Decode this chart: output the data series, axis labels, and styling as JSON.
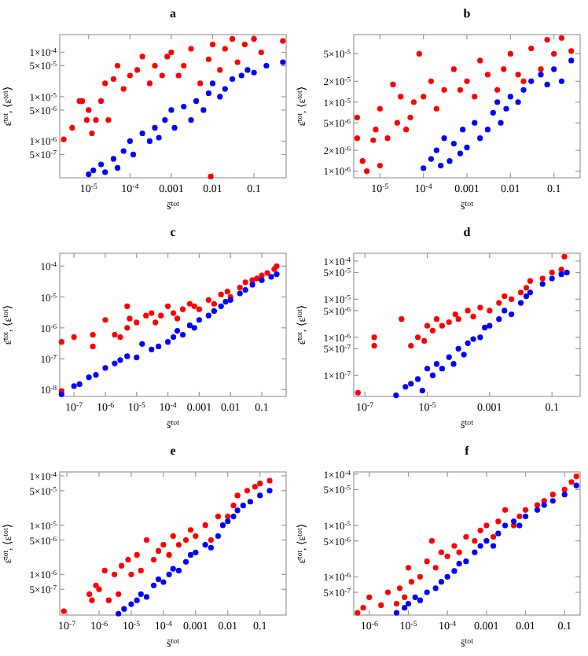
{
  "chart_data": [
    {
      "type": "scatter",
      "title": "a",
      "xlabel": "s̄$^{tot}$",
      "ylabel": "ε̄$^{tot}$, ⟨ε$^{tot}$⟩",
      "log": "xy",
      "marker": "circle",
      "xlim": [
        2e-06,
        0.6
      ],
      "ylim": [
        1.5e-07,
        0.00025
      ],
      "xticks": [
        {
          "value": 1e-05,
          "label": "10$^{-5}$"
        },
        {
          "value": 0.0001,
          "label": "10$^{-4}$"
        },
        0.001,
        0.01,
        0.1
      ],
      "yticks": [
        {
          "value": 5e-07,
          "label": "5×10$^{-7}$"
        },
        {
          "value": 1e-06,
          "label": "1×10$^{-6}$"
        },
        {
          "value": 5e-06,
          "label": "5×10$^{-6}$"
        },
        {
          "value": 1e-05,
          "label": "1×10$^{-5}$"
        },
        {
          "value": 5e-05,
          "label": "5×10$^{-5}$"
        },
        {
          "value": 0.0001,
          "label": "1×10$^{-4}$"
        }
      ],
      "series": [
        {
          "color": "#ff0000",
          "x": [
            2.5e-06,
            4e-06,
            6e-06,
            7e-06,
            9e-06,
            1e-05,
            1.2e-05,
            1.5e-05,
            2e-05,
            2.5e-05,
            3e-05,
            4e-05,
            5e-05,
            7e-05,
            0.0001,
            0.00015,
            0.0002,
            0.0003,
            0.0004,
            0.0006,
            0.0008,
            0.001,
            0.0015,
            0.002,
            0.003,
            0.005,
            0.008,
            0.009,
            0.01,
            0.015,
            0.02,
            0.03,
            0.04,
            0.06,
            0.1,
            0.15,
            0.5
          ],
          "values": [
            1.1e-06,
            2e-06,
            8e-06,
            8e-06,
            3e-06,
            5e-06,
            1.5e-06,
            3e-06,
            8e-06,
            2e-05,
            3e-06,
            2.5e-05,
            5e-05,
            1.5e-05,
            3e-05,
            4e-05,
            8e-05,
            2e-05,
            5e-05,
            3e-05,
            8e-05,
            0.0001,
            3e-05,
            5e-05,
            0.00012,
            2e-05,
            7e-05,
            1.6e-07,
            0.00015,
            4e-05,
            0.00012,
            0.0002,
            6e-05,
            0.00015,
            0.0002,
            0.0001,
            0.00018
          ]
        },
        {
          "color": "#0000ff",
          "x": [
            1e-05,
            1.3e-05,
            2e-05,
            2.5e-05,
            4e-05,
            5e-05,
            7e-05,
            0.0001,
            0.00012,
            0.0002,
            0.0003,
            0.0004,
            0.0005,
            0.0007,
            0.001,
            0.0012,
            0.002,
            0.003,
            0.004,
            0.006,
            0.008,
            0.01,
            0.015,
            0.02,
            0.03,
            0.05,
            0.07,
            0.1,
            0.2,
            0.5
          ],
          "values": [
            1.8e-07,
            2.2e-07,
            3e-07,
            2e-07,
            4e-07,
            2.5e-07,
            6e-07,
            1e-06,
            5e-07,
            1.5e-06,
            1e-06,
            2e-06,
            1.2e-06,
            3e-06,
            5e-06,
            2e-06,
            6e-06,
            3e-06,
            8e-06,
            5e-06,
            1.2e-05,
            2e-05,
            1e-05,
            1.5e-05,
            2.5e-05,
            3e-05,
            4e-05,
            3.5e-05,
            5e-05,
            6e-05
          ]
        }
      ]
    },
    {
      "type": "scatter",
      "title": "b",
      "xlabel": "s̄$^{tot}$",
      "ylabel": "ε̄$^{tot}$, ⟨ε$^{tot}$⟩",
      "log": "xy",
      "marker": "circle",
      "xlim": [
        2.5e-06,
        0.4
      ],
      "ylim": [
        8e-07,
        9.5e-05
      ],
      "xticks": [
        {
          "value": 1e-05,
          "label": "10$^{-5}$"
        },
        {
          "value": 0.0001,
          "label": "10$^{-4}$"
        },
        0.001,
        0.01,
        0.1
      ],
      "yticks": [
        {
          "value": 1e-06,
          "label": "1×10$^{-6}$"
        },
        {
          "value": 2e-06,
          "label": "2×10$^{-6}$"
        },
        {
          "value": 5e-06,
          "label": "5×10$^{-6}$"
        },
        {
          "value": 1e-05,
          "label": "1×10$^{-5}$"
        },
        {
          "value": 2e-05,
          "label": "2×10$^{-5}$"
        },
        {
          "value": 5e-05,
          "label": "5×10$^{-5}$"
        }
      ],
      "series": [
        {
          "color": "#ff0000",
          "x": [
            3e-06,
            3e-06,
            4e-06,
            5e-06,
            7e-06,
            8e-06,
            1e-05,
            1e-05,
            1.5e-05,
            2e-05,
            2.5e-05,
            3e-05,
            4e-05,
            5e-05,
            6e-05,
            8e-05,
            0.0001,
            0.00015,
            0.0002,
            0.0003,
            0.0005,
            0.0007,
            0.001,
            0.0015,
            0.002,
            0.003,
            0.005,
            0.007,
            0.01,
            0.015,
            0.02,
            0.03,
            0.05,
            0.07,
            0.1,
            0.15,
            0.25
          ],
          "values": [
            6e-06,
            3e-06,
            1.4e-06,
            1e-06,
            2.8e-06,
            4e-06,
            8e-06,
            1.2e-06,
            3e-06,
            1.8e-05,
            5e-06,
            1.2e-05,
            4e-06,
            6e-06,
            1e-05,
            5e-05,
            1.2e-05,
            2e-05,
            8e-06,
            1.5e-05,
            3e-05,
            1.5e-05,
            2e-05,
            1.2e-05,
            4e-05,
            2.5e-05,
            1.5e-05,
            3e-05,
            5e-05,
            2.5e-05,
            2e-05,
            6e-05,
            3e-05,
            8e-05,
            5e-05,
            8.5e-05,
            5.5e-05
          ]
        },
        {
          "color": "#0000ff",
          "x": [
            0.0001,
            0.00015,
            0.0002,
            0.00025,
            0.0003,
            0.0004,
            0.0005,
            0.0007,
            0.0008,
            0.001,
            0.0015,
            0.002,
            0.003,
            0.004,
            0.005,
            0.006,
            0.008,
            0.01,
            0.015,
            0.02,
            0.03,
            0.05,
            0.07,
            0.1,
            0.15,
            0.25
          ],
          "values": [
            1.1e-06,
            1.5e-06,
            2e-06,
            1.2e-06,
            3e-06,
            1.4e-06,
            2.5e-06,
            1.8e-06,
            4e-06,
            2.2e-06,
            5e-06,
            3e-06,
            4e-06,
            7e-06,
            1e-05,
            5e-06,
            8e-06,
            1.2e-05,
            1e-05,
            1.5e-05,
            2e-05,
            2.5e-05,
            1.8e-05,
            3e-05,
            2e-05,
            4e-05
          ]
        }
      ]
    },
    {
      "type": "scatter",
      "title": "c",
      "xlabel": "s̄$^{tot}$",
      "ylabel": "ε̄$^{tot}$, ⟨ε$^{tot}$⟩",
      "log": "xy",
      "marker": "circle",
      "xlim": [
        3.5e-08,
        0.6
      ],
      "ylim": [
        6e-09,
        0.00026
      ],
      "xticks": [
        {
          "value": 1e-07,
          "label": "10$^{-7}$"
        },
        {
          "value": 1e-06,
          "label": "10$^{-6}$"
        },
        {
          "value": 1e-05,
          "label": "10$^{-5}$"
        },
        {
          "value": 0.0001,
          "label": "10$^{-4}$"
        },
        0.001,
        0.01,
        0.1
      ],
      "yticks": [
        {
          "value": 1e-08,
          "label": "10$^{-8}$"
        },
        {
          "value": 1e-07,
          "label": "10$^{-7}$"
        },
        {
          "value": 1e-06,
          "label": "10$^{-6}$"
        },
        {
          "value": 1e-05,
          "label": "10$^{-5}$"
        },
        {
          "value": 0.0001,
          "label": "10$^{-4}$"
        }
      ],
      "series": [
        {
          "color": "#ff0000",
          "x": [
            4e-08,
            4e-08,
            1e-07,
            4e-07,
            4e-07,
            1e-06,
            2e-06,
            3e-06,
            5e-06,
            5e-06,
            6e-06,
            1e-05,
            2e-05,
            3e-05,
            4e-05,
            6e-05,
            0.0001,
            0.00015,
            0.0002,
            0.0003,
            0.0005,
            0.0007,
            0.001,
            0.002,
            0.003,
            0.005,
            0.008,
            0.01,
            0.02,
            0.03,
            0.05,
            0.07,
            0.1,
            0.15,
            0.25,
            0.3
          ],
          "values": [
            3.5e-07,
            9e-09,
            5e-07,
            2.5e-07,
            6e-07,
            1.8e-06,
            6e-07,
            5e-07,
            5e-06,
            1e-06,
            2e-06,
            1.5e-06,
            2.5e-06,
            3e-06,
            1.5e-06,
            2.5e-06,
            5e-06,
            3e-06,
            2e-06,
            4e-06,
            6e-06,
            5e-06,
            4e-06,
            8e-06,
            6e-06,
            1.2e-05,
            1.5e-05,
            1e-05,
            2e-05,
            3e-05,
            3.5e-05,
            4e-05,
            5e-05,
            6e-05,
            8e-05,
            0.0001
          ]
        },
        {
          "color": "#0000ff",
          "x": [
            4e-08,
            1e-07,
            1.5e-07,
            3e-07,
            5e-07,
            1e-06,
            2e-06,
            3e-06,
            5e-06,
            1e-05,
            1.5e-05,
            3e-05,
            5e-05,
            0.0001,
            0.00015,
            0.0002,
            0.0003,
            0.0005,
            0.0007,
            0.001,
            0.002,
            0.003,
            0.005,
            0.007,
            0.01,
            0.02,
            0.03,
            0.05,
            0.1,
            0.2,
            0.3
          ],
          "values": [
            7e-09,
            1.3e-08,
            1.5e-08,
            2.5e-08,
            3e-08,
            5e-08,
            7e-08,
            9e-08,
            1.2e-07,
            1.1e-07,
            3e-07,
            2e-07,
            2.5e-07,
            3.5e-07,
            5e-07,
            8e-07,
            6e-07,
            1.2e-06,
            1e-06,
            1.8e-06,
            2.5e-06,
            3.5e-06,
            5e-06,
            7e-06,
            8e-06,
            1.3e-05,
            1.7e-05,
            2.5e-05,
            3.5e-05,
            4.5e-05,
            5.5e-05
          ]
        }
      ]
    },
    {
      "type": "scatter",
      "title": "d",
      "xlabel": "s̄$^{tot}$",
      "ylabel": "ε̄$^{tot}$, ⟨ε$^{tot}$⟩",
      "log": "xy",
      "marker": "circle",
      "xlim": [
        4.4e-08,
        0.8
      ],
      "ylim": [
        2.8e-08,
        0.00016
      ],
      "xticks": [
        {
          "value": 1e-07,
          "label": "10$^{-7}$"
        },
        {
          "value": 1e-05,
          "label": "10$^{-5}$"
        },
        0.001,
        0.1
      ],
      "yticks": [
        {
          "value": 1e-07,
          "label": "1×10$^{-7}$"
        },
        {
          "value": 5e-07,
          "label": "5×10$^{-7}$"
        },
        {
          "value": 1e-06,
          "label": "1×10$^{-6}$"
        },
        {
          "value": 5e-06,
          "label": "5×10$^{-6}$"
        },
        {
          "value": 1e-05,
          "label": "1×10$^{-5}$"
        },
        {
          "value": 5e-05,
          "label": "5×10$^{-5}$"
        },
        {
          "value": 0.0001,
          "label": "1×10$^{-4}$"
        }
      ],
      "series": [
        {
          "color": "#ff0000",
          "x": [
            6e-08,
            2e-07,
            2e-07,
            1.5e-06,
            3e-06,
            5e-06,
            8e-06,
            1e-05,
            1.5e-05,
            2e-05,
            3e-05,
            5e-05,
            8e-05,
            0.0001,
            0.0002,
            0.0003,
            0.0005,
            0.001,
            0.002,
            0.003,
            0.005,
            0.01,
            0.015,
            0.02,
            0.05,
            0.1,
            0.2,
            0.25
          ],
          "values": [
            3.5e-08,
            1e-06,
            6e-07,
            3e-06,
            6e-07,
            1e-06,
            8e-07,
            2e-06,
            1.5e-06,
            3e-06,
            2e-06,
            2.5e-06,
            4e-06,
            3e-06,
            5e-06,
            3.5e-06,
            6e-06,
            5e-06,
            8e-06,
            1.2e-05,
            1e-05,
            1.5e-05,
            2e-05,
            3e-05,
            3.5e-05,
            5e-05,
            6e-05,
            0.00013
          ]
        },
        {
          "color": "#0000ff",
          "x": [
            1e-06,
            2e-06,
            3e-06,
            5e-06,
            7e-06,
            1e-05,
            1.5e-05,
            2e-05,
            3e-05,
            5e-05,
            7e-05,
            0.0001,
            0.00015,
            0.0002,
            0.0003,
            0.0005,
            0.0007,
            0.001,
            0.002,
            0.003,
            0.005,
            0.01,
            0.015,
            0.02,
            0.05,
            0.1,
            0.2,
            0.3
          ],
          "values": [
            3e-08,
            5e-08,
            6e-08,
            8e-08,
            4e-08,
            1.5e-07,
            1e-07,
            2e-07,
            1.5e-07,
            3e-07,
            2e-07,
            5e-07,
            3.5e-07,
            7e-07,
            9e-07,
            1e-06,
            1.8e-06,
            2e-06,
            3e-06,
            5e-06,
            4e-06,
            8e-06,
            1.2e-05,
            1.5e-05,
            2.5e-05,
            3.5e-05,
            4.5e-05,
            5e-05
          ]
        }
      ]
    },
    {
      "type": "scatter",
      "title": "e",
      "xlabel": "s̄$^{tot}$",
      "ylabel": "ε̄$^{tot}$, ⟨ε$^{tot}$⟩",
      "log": "xy",
      "marker": "circle",
      "xlim": [
        6e-08,
        0.65
      ],
      "ylim": [
        1.5e-07,
        0.00012
      ],
      "xticks": [
        {
          "value": 1e-07,
          "label": "10$^{-7}$"
        },
        {
          "value": 1e-06,
          "label": "10$^{-6}$"
        },
        {
          "value": 1e-05,
          "label": "10$^{-5}$"
        },
        {
          "value": 0.0001,
          "label": "10$^{-4}$"
        },
        0.001,
        0.01,
        0.1
      ],
      "yticks": [
        {
          "value": 5e-07,
          "label": "5×10$^{-7}$"
        },
        {
          "value": 1e-06,
          "label": "1×10$^{-6}$"
        },
        {
          "value": 5e-06,
          "label": "5×10$^{-6}$"
        },
        {
          "value": 1e-05,
          "label": "1×10$^{-5}$"
        },
        {
          "value": 5e-05,
          "label": "5×10$^{-5}$"
        },
        {
          "value": 0.0001,
          "label": "1×10$^{-4}$"
        }
      ],
      "series": [
        {
          "color": "#ff0000",
          "x": [
            8e-08,
            5e-07,
            6e-07,
            8e-07,
            1e-06,
            1.5e-06,
            2e-06,
            3e-06,
            4e-06,
            5e-06,
            8e-06,
            1e-05,
            1.5e-05,
            2e-05,
            3e-05,
            5e-05,
            7e-05,
            0.0001,
            0.00015,
            0.0002,
            0.0003,
            0.0005,
            0.0007,
            0.001,
            0.002,
            0.003,
            0.005,
            0.01,
            0.015,
            0.02,
            0.04,
            0.07,
            0.1,
            0.2
          ],
          "values": [
            1.8e-07,
            4e-07,
            3e-07,
            6e-07,
            5e-07,
            1.2e-06,
            3e-07,
            1e-06,
            4e-07,
            1.5e-06,
            2e-06,
            1e-06,
            2.5e-06,
            1.2e-06,
            5e-06,
            2e-06,
            3e-06,
            4e-06,
            2.5e-06,
            6e-06,
            4e-06,
            5e-06,
            8e-06,
            6e-06,
            1e-05,
            5e-06,
            1.5e-05,
            1.5e-05,
            2.5e-05,
            4e-05,
            5e-05,
            6e-05,
            7e-05,
            8e-05
          ]
        },
        {
          "color": "#0000ff",
          "x": [
            4e-06,
            6e-06,
            1e-05,
            1.5e-05,
            2e-05,
            3e-05,
            5e-05,
            7e-05,
            0.0001,
            0.00015,
            0.0002,
            0.0003,
            0.0005,
            0.0007,
            0.001,
            0.002,
            0.003,
            0.005,
            0.007,
            0.01,
            0.015,
            0.02,
            0.03,
            0.05,
            0.1,
            0.2
          ],
          "values": [
            1.6e-07,
            2e-07,
            2.5e-07,
            3e-07,
            4e-07,
            3.5e-07,
            6e-07,
            8e-07,
            7e-07,
            1e-06,
            1.3e-06,
            1.2e-06,
            1.8e-06,
            2.5e-06,
            2.8e-06,
            4e-06,
            3.5e-06,
            6e-06,
            1e-05,
            1.2e-05,
            1.5e-05,
            2e-05,
            2.5e-05,
            3e-05,
            4e-05,
            5e-05
          ]
        }
      ]
    },
    {
      "type": "scatter",
      "title": "f",
      "xlabel": "s̄$^{tot}$",
      "ylabel": "ε̄$^{tot}$, ⟨ε$^{tot}$⟩",
      "log": "xy",
      "marker": "circle",
      "xlim": [
        4e-07,
        0.25
      ],
      "ylim": [
        1.8e-07,
        0.00011
      ],
      "xticks": [
        {
          "value": 1e-06,
          "label": "10$^{-6}$"
        },
        {
          "value": 1e-05,
          "label": "10$^{-5}$"
        },
        {
          "value": 0.0001,
          "label": "10$^{-4}$"
        },
        0.001,
        0.01,
        0.1
      ],
      "yticks": [
        {
          "value": 5e-07,
          "label": "5×10$^{-7}$"
        },
        {
          "value": 1e-06,
          "label": "1×10$^{-6}$"
        },
        {
          "value": 5e-06,
          "label": "5×10$^{-6}$"
        },
        {
          "value": 1e-05,
          "label": "1×10$^{-5}$"
        },
        {
          "value": 5e-05,
          "label": "5×10$^{-5}$"
        },
        {
          "value": 0.0001,
          "label": "1×10$^{-4}$"
        }
      ],
      "series": [
        {
          "color": "#ff0000",
          "x": [
            5e-07,
            7e-07,
            1e-06,
            2e-06,
            3e-06,
            5e-06,
            6e-06,
            8e-06,
            1e-05,
            1.2e-05,
            2e-05,
            3e-05,
            4e-05,
            5e-05,
            7e-05,
            0.0001,
            0.00015,
            0.0002,
            0.0003,
            0.0005,
            0.0007,
            0.001,
            0.0015,
            0.002,
            0.003,
            0.005,
            0.007,
            0.01,
            0.02,
            0.03,
            0.05,
            0.1,
            0.15,
            0.2
          ],
          "values": [
            2e-07,
            2.5e-07,
            4e-07,
            2.8e-07,
            5e-07,
            3e-07,
            6e-07,
            4e-07,
            1.5e-06,
            8e-07,
            1e-06,
            2e-06,
            5e-06,
            1.5e-06,
            3e-06,
            2.5e-06,
            4e-06,
            3e-06,
            6e-06,
            5e-06,
            8e-06,
            1e-05,
            6e-06,
            1.2e-05,
            2e-05,
            1e-05,
            1.5e-05,
            2e-05,
            2.5e-05,
            3e-05,
            4e-05,
            5e-05,
            7e-05,
            9e-05
          ]
        },
        {
          "color": "#0000ff",
          "x": [
            5e-06,
            8e-06,
            1e-05,
            1.5e-05,
            2e-05,
            3e-05,
            5e-05,
            7e-05,
            0.0001,
            0.00015,
            0.0002,
            0.0003,
            0.0005,
            0.0007,
            0.001,
            0.0015,
            0.002,
            0.003,
            0.005,
            0.007,
            0.01,
            0.02,
            0.03,
            0.05,
            0.1,
            0.2
          ],
          "values": [
            2e-07,
            2.5e-07,
            3e-07,
            4e-07,
            3.5e-07,
            5e-07,
            6e-07,
            8e-07,
            1e-06,
            1.3e-06,
            1.8e-06,
            2e-06,
            3e-06,
            4e-06,
            5e-06,
            4e-06,
            7e-06,
            1e-05,
            1.2e-05,
            1e-05,
            1.5e-05,
            2e-05,
            2.5e-05,
            3e-05,
            4e-05,
            6e-05
          ]
        }
      ]
    }
  ]
}
